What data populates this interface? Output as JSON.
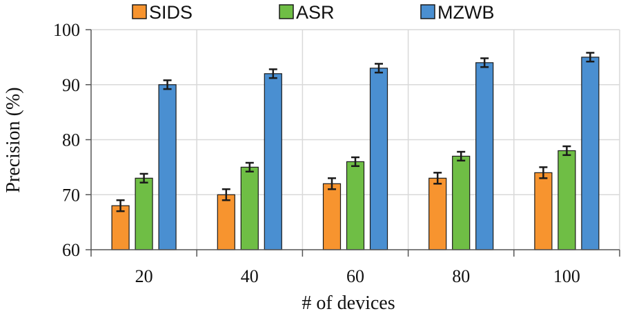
{
  "chart_data": {
    "type": "bar",
    "title": "",
    "xlabel": "# of devices",
    "ylabel": "Precision (%)",
    "ylim": [
      60,
      100
    ],
    "yticks": [
      "60",
      "70",
      "80",
      "90",
      "100"
    ],
    "categories": [
      "20",
      "40",
      "60",
      "80",
      "100"
    ],
    "grid": true,
    "legend_position": "top",
    "series": [
      {
        "name": "SIDS",
        "color": "#F7942F",
        "values": [
          68,
          70,
          72,
          73,
          74
        ],
        "errors": [
          1,
          1,
          1,
          1,
          1
        ]
      },
      {
        "name": "ASR",
        "color": "#6FBE45",
        "values": [
          73,
          75,
          76,
          77,
          78
        ],
        "errors": [
          0.8,
          0.8,
          0.8,
          0.8,
          0.8
        ]
      },
      {
        "name": "MZWB",
        "color": "#4A8FD1",
        "values": [
          90,
          92,
          93,
          94,
          95
        ],
        "errors": [
          0.8,
          0.8,
          0.8,
          0.8,
          0.8
        ]
      }
    ]
  }
}
